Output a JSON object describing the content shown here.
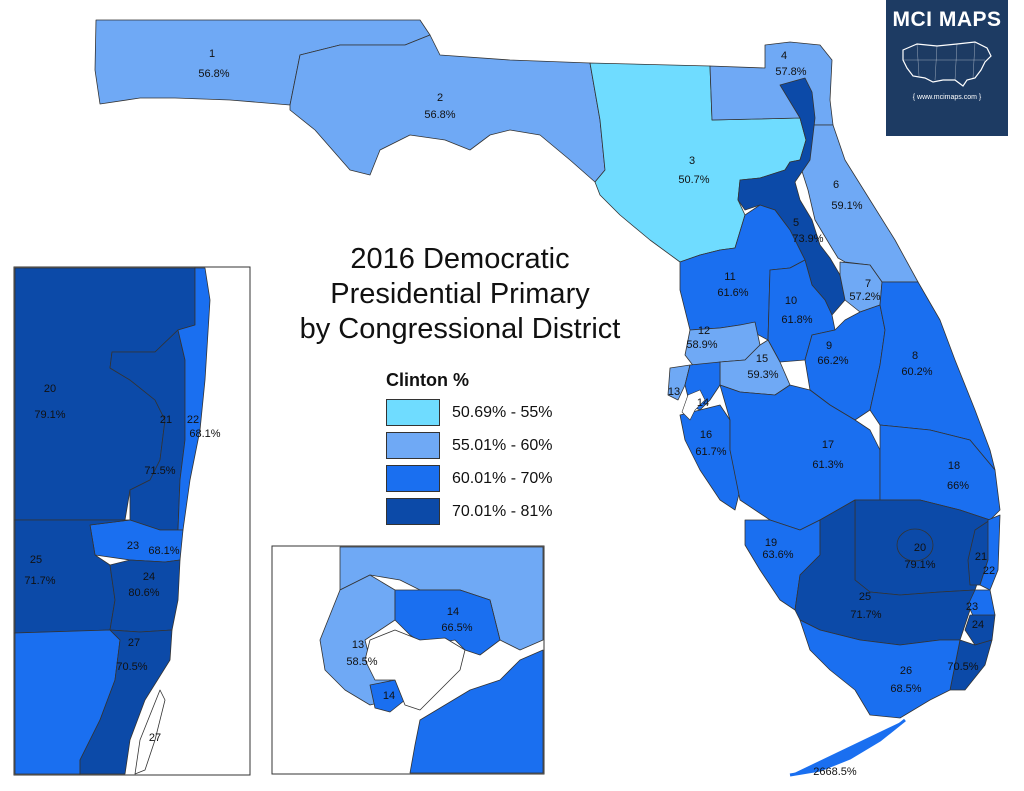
{
  "title": {
    "line1": "2016 Democratic",
    "line2": "Presidential Primary",
    "line3": "by Congressional District"
  },
  "legend": {
    "title": "Clinton %",
    "items": [
      {
        "label": "50.69% - 55%",
        "color": "#6fdcff"
      },
      {
        "label": "55.01% - 60%",
        "color": "#6fa9f5"
      },
      {
        "label": "60.01% - 70%",
        "color": "#1a6ff0"
      },
      {
        "label": "70.01% - 81%",
        "color": "#0c4aa8"
      }
    ]
  },
  "logo": {
    "name": "MCI MAPS",
    "url": "{ www.mcimaps.com }"
  },
  "districts": {
    "d1": {
      "num": "1",
      "pct": "56.8%"
    },
    "d2": {
      "num": "2",
      "pct": "56.8%"
    },
    "d3": {
      "num": "3",
      "pct": "50.7%"
    },
    "d4": {
      "num": "4",
      "pct": "57.8%"
    },
    "d5": {
      "num": "5",
      "pct": "73.9%"
    },
    "d6": {
      "num": "6",
      "pct": "59.1%"
    },
    "d7": {
      "num": "7",
      "pct": "57.2%"
    },
    "d8": {
      "num": "8",
      "pct": "60.2%"
    },
    "d9": {
      "num": "9",
      "pct": "66.2%"
    },
    "d10": {
      "num": "10",
      "pct": "61.8%"
    },
    "d11": {
      "num": "11",
      "pct": "61.6%"
    },
    "d12": {
      "num": "12",
      "pct": "58.9%"
    },
    "d13": {
      "num": "13",
      "pct": "58.5%"
    },
    "d14": {
      "num": "14",
      "pct": "66.5%"
    },
    "d15": {
      "num": "15",
      "pct": "59.3%"
    },
    "d16": {
      "num": "16",
      "pct": "61.7%"
    },
    "d17": {
      "num": "17",
      "pct": "61.3%"
    },
    "d18": {
      "num": "18",
      "pct": "66%"
    },
    "d19": {
      "num": "19",
      "pct": "63.6%"
    },
    "d20": {
      "num": "20",
      "pct": "79.1%"
    },
    "d21": {
      "num": "21",
      "pct": "71.5%"
    },
    "d22": {
      "num": "22",
      "pct": "68.1%"
    },
    "d23": {
      "num": "23",
      "pct": "68.1%"
    },
    "d24": {
      "num": "24",
      "pct": "80.6%"
    },
    "d25": {
      "num": "25",
      "pct": "71.7%"
    },
    "d26": {
      "num": "26",
      "pct": "68.5%"
    },
    "d27": {
      "num": "27",
      "pct": "70.5%"
    }
  },
  "map_labels": {
    "d26_keys": "2668.5%",
    "d27_main": "70.5%"
  }
}
